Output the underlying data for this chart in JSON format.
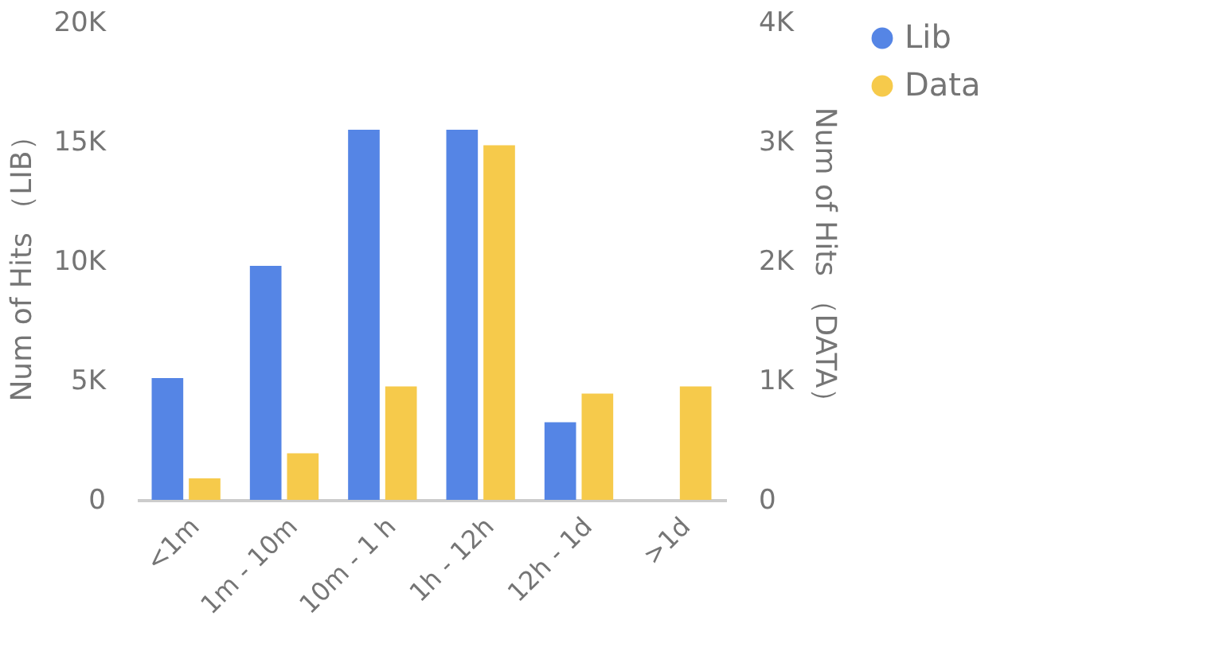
{
  "chart_data": {
    "type": "bar",
    "categories": [
      "<1m",
      "1m - 10m",
      "10m - 1 h",
      "1h - 12h",
      "12h - 1d",
      ">1d"
    ],
    "series": [
      {
        "name": "Lib",
        "color": "#5585e5",
        "values": [
          5100,
          9800,
          15500,
          15500,
          3250,
          null
        ]
      },
      {
        "name": "Data",
        "color": "#f6ca4b",
        "axis": "y2",
        "values": [
          180,
          390,
          950,
          2970,
          890,
          950
        ]
      }
    ],
    "ylabel": "Num of Hits （LIB）",
    "y2label": "Num of Hits （DATA）",
    "ylim": [
      0,
      20000
    ],
    "yticks": [
      0,
      {
        "value": 5000,
        "label": "5K"
      },
      {
        "value": 10000,
        "label": "10K"
      },
      {
        "value": 15000,
        "label": "15K"
      },
      {
        "value": 20000,
        "label": "20K"
      }
    ],
    "y2lim": [
      0,
      4000
    ],
    "y2ticks": [
      0,
      {
        "value": 1000,
        "label": "1K"
      },
      {
        "value": 2000,
        "label": "2K"
      },
      {
        "value": 3000,
        "label": "3K"
      },
      {
        "value": 4000,
        "label": "4K"
      }
    ],
    "grid": false,
    "legend": "top right"
  }
}
